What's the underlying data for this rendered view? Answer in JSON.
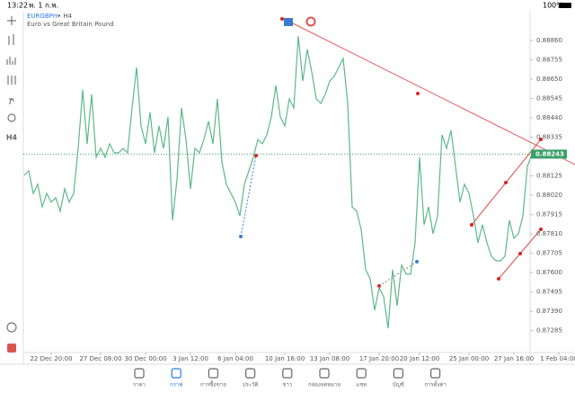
{
  "status_bar": {
    "time": "13:22",
    "date": "พ. 1 ก.พ.",
    "battery": "100%"
  },
  "symbol": {
    "name": "EURGBPm",
    "timeframe": "• H4",
    "description": "Euro vs Great Britain Pound"
  },
  "toolbar": {
    "timeframe": "H4"
  },
  "chart_data": {
    "type": "line",
    "categories": [
      null,
      null,
      null,
      null,
      null,
      null,
      "22 Dec 20:00",
      null,
      null,
      null,
      null,
      null,
      null,
      null,
      null,
      null,
      null,
      "27 Dec 08:00",
      null,
      null,
      null,
      null,
      null,
      null,
      null,
      null,
      null,
      "30 Dec 00:00",
      null,
      null,
      null,
      null,
      null,
      null,
      null,
      null,
      null,
      "3 Jan 12:00",
      null,
      null,
      null,
      null,
      null,
      null,
      null,
      null,
      null,
      "6 Jan 04:00",
      null,
      null,
      null,
      null,
      null,
      null,
      null,
      null,
      null,
      null,
      "10 Jan 16:00",
      null,
      null,
      null,
      null,
      null,
      null,
      null,
      null,
      null,
      "13 Jan 08:00",
      null,
      null,
      null,
      null,
      null,
      null,
      null,
      null,
      null,
      null,
      "17 Jan 20:00",
      null,
      null,
      null,
      null,
      null,
      null,
      null,
      null,
      "20 Jan 12:00",
      null,
      null,
      null,
      null,
      null,
      null,
      null,
      null,
      null,
      null,
      "25 Jan 00:00",
      null,
      null,
      null,
      null,
      null,
      null,
      null,
      null,
      null,
      "27 Jan 16:00",
      null,
      null,
      null,
      null,
      null,
      null,
      null,
      null,
      null,
      "1 Feb 04:00"
    ],
    "series": [
      {
        "name": "EURGBPm",
        "color": "#5cb88a",
        "values": [
          0.88128,
          0.88152,
          0.8803,
          0.88079,
          0.87957,
          0.8803,
          0.87982,
          0.88006,
          0.87933,
          0.88055,
          0.87982,
          0.8803,
          0.88274,
          0.88592,
          0.88299,
          0.88567,
          0.88226,
          0.88274,
          0.88226,
          0.88299,
          0.8825,
          0.8825,
          0.88274,
          0.8825,
          0.88494,
          0.88714,
          0.88396,
          0.88299,
          0.8847,
          0.8825,
          0.88396,
          0.88274,
          0.88445,
          0.87884,
          0.88104,
          0.88494,
          0.88323,
          0.88055,
          0.88274,
          0.8825,
          0.88323,
          0.88421,
          0.88299,
          0.88543,
          0.88201,
          0.88079,
          0.8803,
          0.87982,
          0.87908,
          0.88079,
          0.88152,
          0.88226,
          0.88323,
          0.88299,
          0.88348,
          0.88445,
          0.88616,
          0.88445,
          0.88396,
          0.88543,
          0.88494,
          0.88884,
          0.8864,
          0.88811,
          0.88689,
          0.88543,
          0.88518,
          0.88567,
          0.8864,
          0.88665,
          0.88714,
          0.88762,
          0.88518,
          0.87957,
          0.87933,
          0.87835,
          0.87616,
          0.87567,
          0.87396,
          0.87518,
          0.87469,
          0.87298,
          0.87616,
          0.8742,
          0.8764,
          0.87591,
          0.87591,
          0.87762,
          0.88226,
          0.8786,
          0.87957,
          0.87811,
          0.87908,
          0.88348,
          0.88274,
          0.88372,
          0.88177,
          0.87982,
          0.88079,
          0.8803,
          0.87908,
          0.87762,
          0.8786,
          0.87762,
          0.87689,
          0.87664,
          0.87664,
          0.87689,
          0.87884,
          0.87786,
          0.87811,
          0.87908,
          0.88177,
          0.88243,
          null,
          null,
          null,
          null,
          null,
          null
        ]
      }
    ],
    "last_price": 0.88243,
    "ylim": [
      0.87127,
      0.89021
    ],
    "yticks": [
      {
        "value": 0.8886,
        "label": "0.88860"
      },
      0.88755,
      {
        "value": 0.8865,
        "label": "0.88650"
      },
      0.88545,
      {
        "value": 0.8844,
        "label": "0.88440"
      },
      0.88335,
      0.88125,
      {
        "value": 0.8802,
        "label": "0.88020"
      },
      0.87915,
      {
        "value": 0.8781,
        "label": "0.87810"
      },
      0.87705,
      {
        "value": 0.876,
        "label": "0.87600"
      },
      0.87495,
      {
        "value": 0.8739,
        "label": "0.87390"
      },
      0.87285
    ]
  },
  "bottom_nav": [
    "ราคา",
    "กราฟ",
    "การซื้อขาย",
    "ประวัติ",
    "ข่าว",
    "กล่องจดหมาย",
    "แชท",
    "บัญชี",
    "การตั้งค่า"
  ]
}
